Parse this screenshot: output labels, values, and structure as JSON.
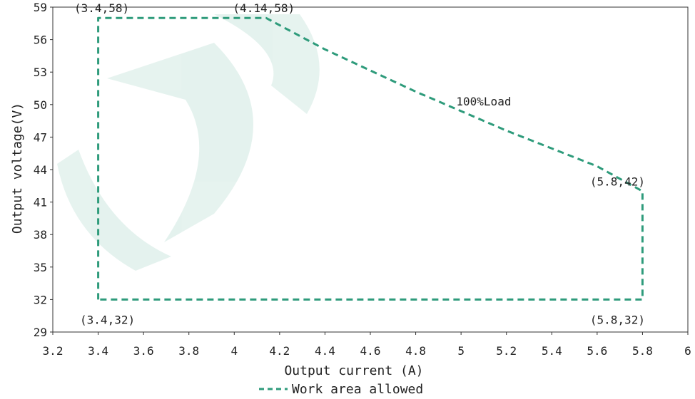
{
  "chart_data": {
    "type": "line",
    "xlabel": "Output current (A)",
    "ylabel": "Output voltage(V)",
    "xlim": [
      3.2,
      6
    ],
    "ylim": [
      29,
      59
    ],
    "x_ticks": [
      "3.2",
      "3.4",
      "3.6",
      "3.8",
      "4",
      "4.2",
      "4.4",
      "4.6",
      "4.8",
      "5",
      "5.2",
      "5.4",
      "5.6",
      "5.8",
      "6"
    ],
    "y_ticks": [
      "29",
      "32",
      "35",
      "38",
      "41",
      "44",
      "47",
      "50",
      "53",
      "56",
      "59"
    ],
    "grid": false,
    "legend_position": "bottom-center",
    "series": [
      {
        "name": "Work area allowed",
        "color": "#2e9b7b",
        "style": "dashed",
        "points": [
          {
            "x": 3.4,
            "y": 32
          },
          {
            "x": 3.4,
            "y": 58
          },
          {
            "x": 4.14,
            "y": 58
          },
          {
            "x": 4.4,
            "y": 55.1
          },
          {
            "x": 4.8,
            "y": 51.2
          },
          {
            "x": 5.2,
            "y": 47.6
          },
          {
            "x": 5.6,
            "y": 44.3
          },
          {
            "x": 5.8,
            "y": 42
          },
          {
            "x": 5.8,
            "y": 32
          },
          {
            "x": 3.4,
            "y": 32
          }
        ]
      }
    ],
    "annotations": [
      {
        "text": "(3.4,58)",
        "x": 3.4,
        "y": 58,
        "anchor": "above"
      },
      {
        "text": "(4.14,58)",
        "x": 4.14,
        "y": 58,
        "anchor": "above"
      },
      {
        "text": "100%Load",
        "x": 5.1,
        "y": 50.3,
        "anchor": "middle"
      },
      {
        "text": "(5.8,42)",
        "x": 5.8,
        "y": 42,
        "anchor": "above"
      },
      {
        "text": "(3.4,32)",
        "x": 3.4,
        "y": 32,
        "anchor": "below"
      },
      {
        "text": "(5.8,32)",
        "x": 5.8,
        "y": 32,
        "anchor": "below"
      }
    ]
  }
}
